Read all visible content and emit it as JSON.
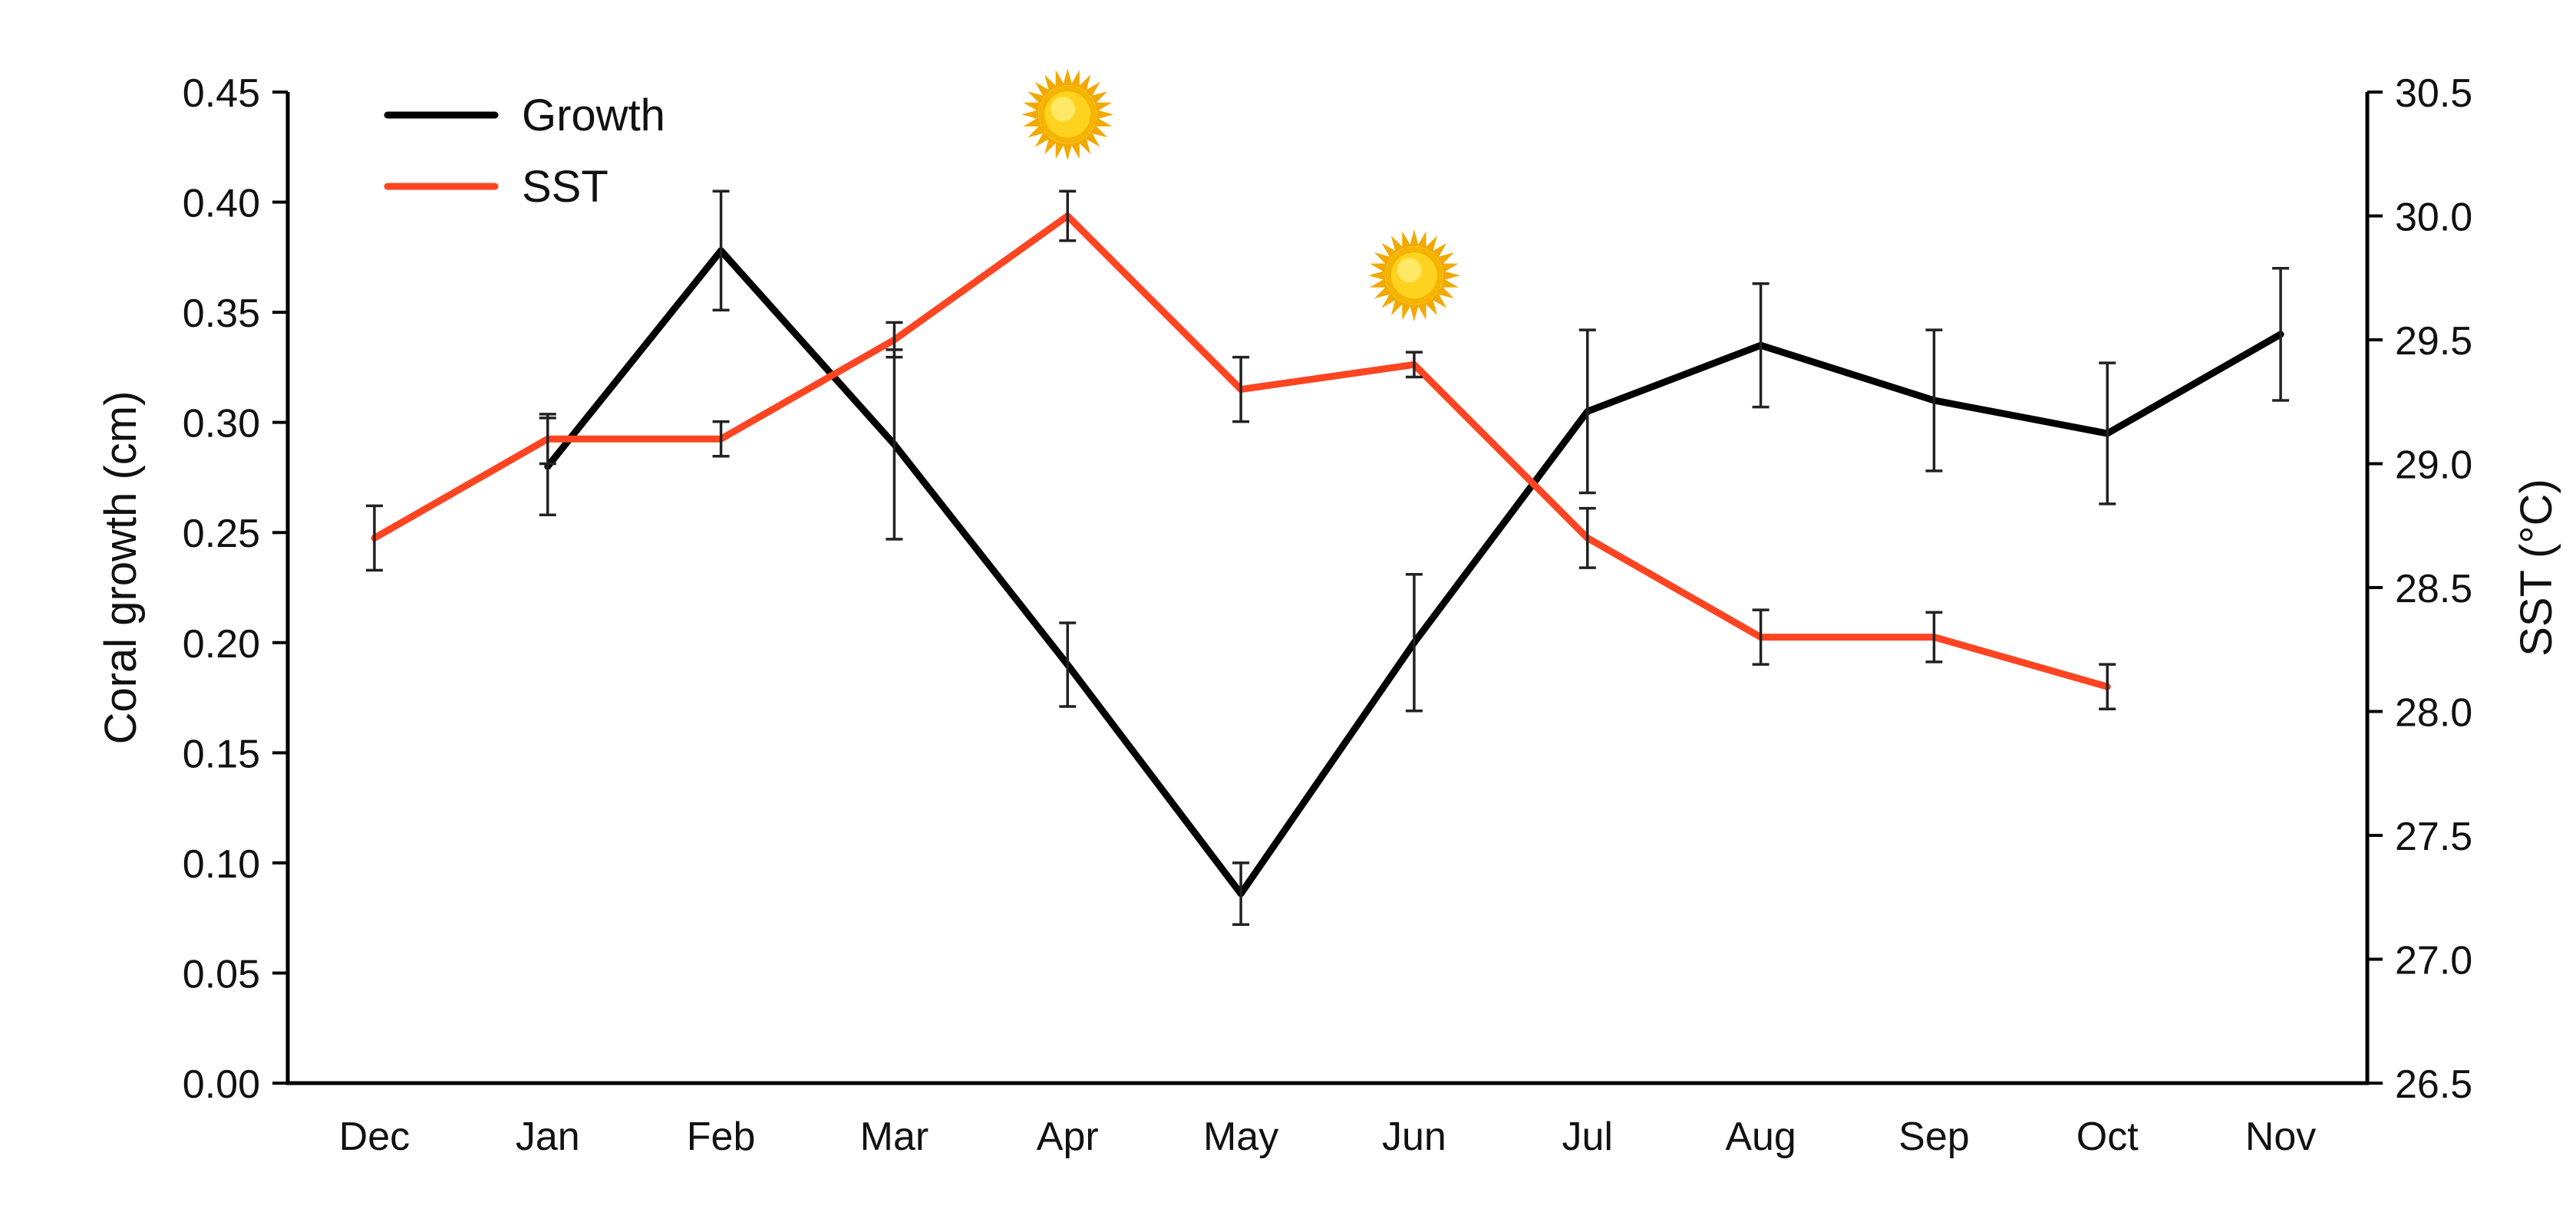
{
  "chart_data": {
    "type": "line",
    "categories": [
      "Dec",
      "Jan",
      "Feb",
      "Mar",
      "Apr",
      "May",
      "Jun",
      "Jul",
      "Aug",
      "Sep",
      "Oct",
      "Nov"
    ],
    "ylabel": "Coral growth (cm)",
    "y2label": "SST (°C)",
    "ylim": [
      0,
      0.45
    ],
    "yticks": [
      "0.00",
      "0.05",
      "0.10",
      "0.15",
      "0.20",
      "0.25",
      "0.30",
      "0.35",
      "0.40",
      "0.45"
    ],
    "y2lim": [
      26.5,
      30.5
    ],
    "y2ticks": [
      "26.5",
      "27.0",
      "27.5",
      "28.0",
      "28.5",
      "29.0",
      "29.5",
      "30.0",
      "30.5"
    ],
    "legend_position": "top-left",
    "grid": false,
    "series": [
      {
        "name": "Growth",
        "axis": "left",
        "color": "#000000",
        "values": [
          null,
          0.28,
          0.378,
          0.29,
          0.19,
          0.086,
          0.2,
          0.305,
          0.335,
          0.31,
          0.295,
          0.34
        ],
        "errors": [
          null,
          0.022,
          0.027,
          0.043,
          0.019,
          0.014,
          0.031,
          0.037,
          0.028,
          0.032,
          0.032,
          0.03
        ]
      },
      {
        "name": "SST",
        "axis": "right",
        "color": "#ff4422",
        "values": [
          28.7,
          29.1,
          29.1,
          29.5,
          30.0,
          29.3,
          29.4,
          28.7,
          28.3,
          28.3,
          28.1,
          null
        ],
        "errors": [
          0.13,
          0.1,
          0.07,
          0.07,
          0.1,
          0.13,
          0.05,
          0.12,
          0.11,
          0.1,
          0.09,
          null
        ]
      }
    ],
    "annotations": [
      {
        "icon": "sun-icon",
        "category": "Apr"
      },
      {
        "icon": "sun-icon",
        "category": "Jun"
      }
    ]
  }
}
